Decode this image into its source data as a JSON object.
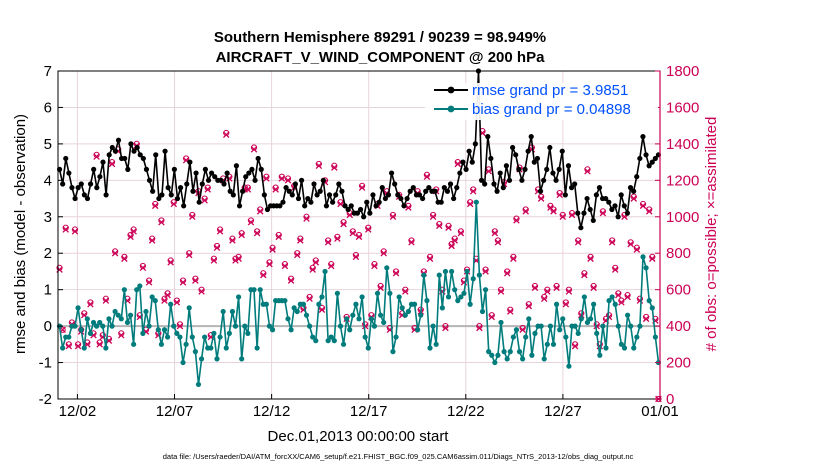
{
  "chart_data": {
    "type": "line",
    "title": "Southern Hemisphere 89291 / 90239 = 98.949%",
    "subtitle": "AIRCRAFT_V_WIND_COMPONENT @ 200 hPa",
    "xlabel": "Dec.01,2013 00:00:00 start",
    "ylabel": "rmse and bias (model - observation)",
    "y2label": "# of obs: o=possible; ×=assimilated",
    "ylim": [
      -2,
      7
    ],
    "y2lim": [
      0,
      1800
    ],
    "xlim": [
      0,
      31
    ],
    "grid": true,
    "legend_position": "top-right",
    "xticks": [
      {
        "value": 1,
        "label": "12/02"
      },
      {
        "value": 6,
        "label": "12/07"
      },
      {
        "value": 11,
        "label": "12/12"
      },
      {
        "value": 16,
        "label": "12/17"
      },
      {
        "value": 21,
        "label": "12/22"
      },
      {
        "value": 26,
        "label": "12/27"
      },
      {
        "value": 31,
        "label": "01/01"
      }
    ],
    "yticks": [
      "-2",
      "-1",
      "0",
      "1",
      "2",
      "3",
      "4",
      "5",
      "6",
      "7"
    ],
    "y2ticks": [
      "0",
      "200",
      "400",
      "600",
      "800",
      "1000",
      "1200",
      "1400",
      "1600",
      "1800"
    ],
    "colors": {
      "rmse": "#000000",
      "bias": "#007c7c",
      "obs": "#cc0055",
      "zero": "#b4b4b4",
      "grid": "#e8d4dc",
      "legend_text": "#0050ff",
      "y2axis": "#cc0055"
    },
    "series": [
      {
        "name": "rmse grand pr = 3.9851",
        "color": "#000000",
        "values": [
          4.3,
          3.9,
          4.6,
          4.2,
          3.8,
          3.5,
          3.8,
          3.9,
          3.6,
          3.5,
          3.9,
          4.3,
          3.8,
          4.1,
          4.5,
          3.6,
          4.7,
          4.9,
          4.8,
          5.1,
          4.6,
          4.6,
          4.3,
          5.0,
          4.8,
          4.9,
          4.7,
          4.6,
          4.3,
          4.0,
          3.7,
          4.7,
          3.5,
          3.6,
          4.8,
          3.8,
          3.6,
          4.3,
          3.5,
          3.8,
          3.3,
          3.9,
          4.5,
          3.7,
          4.2,
          3.4,
          3.9,
          4.3,
          4.0,
          4.2,
          4.1,
          4.0,
          4.0,
          3.9,
          4.2,
          3.7,
          3.6,
          4.4,
          3.3,
          3.7,
          4.1,
          4.2,
          4.3,
          4.0,
          4.6,
          4.3,
          3.6,
          3.2,
          3.3,
          3.3,
          3.3,
          3.3,
          3.4,
          3.8,
          3.7,
          3.6,
          3.9,
          3.5,
          4.0,
          3.3,
          3.5,
          3.4,
          3.9,
          3.6,
          3.7,
          4.0,
          3.3,
          3.6,
          3.4,
          3.6,
          3.9,
          3.7,
          3.3,
          3.2,
          3.3,
          3.1,
          3.1,
          3.2,
          3.0,
          3.4,
          3.1,
          3.6,
          3.3,
          3.4,
          3.8,
          3.5,
          3.6,
          4.2,
          3.9,
          3.6,
          3.5,
          3.3,
          3.5,
          3.7,
          3.8,
          3.6,
          3.6,
          3.5,
          3.7,
          3.8,
          3.7,
          3.7,
          3.4,
          3.4,
          3.8,
          3.7,
          3.9,
          3.5,
          3.8,
          4.2,
          4.5,
          4.3,
          4.8,
          4.5,
          5.0,
          7.0,
          4.0,
          3.9,
          5.2,
          4.6,
          3.9,
          3.7,
          4.2,
          3.8,
          4.4,
          4.0,
          4.9,
          4.7,
          4.3,
          4.0,
          4.3,
          4.8,
          5.2,
          4.5,
          4.6,
          3.7,
          4.0,
          4.3,
          4.9,
          4.2,
          4.0,
          4.3,
          4.8,
          3.6,
          4.4,
          3.8,
          3.9,
          3.1,
          2.7,
          3.1,
          3.5,
          3.2,
          2.9,
          3.6,
          3.8,
          3.5,
          3.5,
          3.4,
          3.2,
          3.3,
          3.0,
          3.6,
          3.3,
          3.1,
          3.8,
          3.7,
          4.1,
          4.6,
          5.2,
          4.7,
          4.4,
          4.5,
          4.6,
          4.7
        ]
      },
      {
        "name": "bias grand pr = 0.04898",
        "color": "#007c7c",
        "values": [
          0.0,
          -0.6,
          -0.3,
          -0.3,
          0.0,
          0.0,
          0.5,
          -0.1,
          -0.6,
          0.2,
          -0.2,
          0.1,
          0.0,
          0.1,
          0.0,
          -0.6,
          0.2,
          0.0,
          0.4,
          0.3,
          0.2,
          1.0,
          0.1,
          0.3,
          -0.5,
          1.0,
          1.1,
          -0.2,
          0.4,
          0.0,
          0.8,
          0.7,
          -0.1,
          -0.5,
          -0.1,
          -0.3,
          0.6,
          0.0,
          -0.2,
          -0.3,
          -1.0,
          -0.5,
          0.5,
          -0.3,
          -0.7,
          -1.6,
          -0.9,
          -0.3,
          -0.6,
          -0.6,
          -0.2,
          -0.9,
          -0.3,
          0.4,
          -0.6,
          -0.2,
          0.4,
          0.0,
          0.8,
          -0.9,
          0.0,
          -0.2,
          1.0,
          1.0,
          -0.6,
          1.0,
          0.6,
          0.6,
          0.0,
          -0.1,
          0.7,
          0.7,
          0.7,
          0.7,
          0.2,
          -0.1,
          0.5,
          0.4,
          0.6,
          0.6,
          0.3,
          0.0,
          -0.3,
          -0.4,
          0.6,
          0.8,
          1.5,
          -0.4,
          -0.3,
          -0.4,
          0.9,
          0.0,
          -0.5,
          0.2,
          -0.1,
          0.3,
          0.6,
          0.2,
          0.8,
          -0.3,
          -0.6,
          0.2,
          0.0,
          0.9,
          0.3,
          0.1,
          1.6,
          0.9,
          -0.7,
          -0.3,
          0.8,
          0.5,
          0.3,
          0.4,
          0.6,
          0.6,
          -0.1,
          0.3,
          1.4,
          0.7,
          -0.6,
          0.0,
          -0.5,
          1.4,
          0.5,
          1.5,
          0.8,
          1.5,
          1.0,
          0.7,
          0.8,
          0.9,
          1.5,
          0.6,
          1.3,
          3.4,
          1.4,
          0.4,
          1.0,
          -0.7,
          -0.8,
          -1.0,
          -0.8,
          0.1,
          -0.7,
          -0.9,
          -0.7,
          -0.3,
          -0.1,
          -0.7,
          -0.9,
          -0.3,
          0.2,
          -0.8,
          -0.2,
          0.0,
          0.0,
          -0.9,
          -0.5,
          0.0,
          -0.5,
          0.6,
          -0.1,
          0.2,
          -0.3,
          -1.1,
          0.0,
          0.0,
          -0.2,
          0.2,
          0.8,
          0.1,
          0.2,
          0.6,
          -0.2,
          -0.8,
          0.0,
          -0.6,
          0.7,
          0.8,
          0.6,
          0.0,
          -0.5,
          -0.6,
          0.3,
          0.0,
          -0.6,
          -0.3,
          0.0,
          1.9,
          1.6,
          0.7,
          0.5,
          -0.3,
          -1.0
        ]
      }
    ],
    "obs_possible": [
      720,
      380,
      940,
      300,
      420,
      930,
      300,
      380,
      470,
      310,
      530,
      360,
      1340,
      310,
      350,
      550,
      330,
      1300,
      810,
      1370,
      360,
      780,
      550,
      900,
      930,
      1400,
      460,
      730,
      380,
      650,
      880,
      1070,
      360,
      980,
      550,
      580,
      760,
      1080,
      540,
      410,
      650,
      1320,
      800,
      1010,
      660,
      1140,
      600,
      1100,
      1160,
      350,
      770,
      840,
      930,
      1210,
      1460,
      1220,
      880,
      770,
      780,
      910,
      1160,
      1160,
      980,
      1380,
      920,
      1040,
      690,
      1220,
      750,
      830,
      1160,
      900,
      1220,
      740,
      1210,
      660,
      1170,
      800,
      880,
      500,
      1000,
      560,
      720,
      760,
      1290,
      500,
      1200,
      870,
      740,
      1280,
      890,
      1080,
      970,
      450,
      1020,
      920,
      790,
      900,
      1170,
      410,
      940,
      460,
      740,
      1070,
      620,
      810,
      1140,
      390,
      1010,
      700,
      1120,
      470,
      600,
      1060,
      870,
      390,
      1140,
      490,
      700,
      1230,
      780,
      1010,
      1150,
      960,
      600,
      400,
      950,
      850,
      880,
      1300,
      920,
      650,
      710,
      1080,
      1150,
      770,
      400,
      1470,
      710,
      1260,
      460,
      920,
      870,
      600,
      1190,
      700,
      490,
      780,
      990,
      1270,
      390,
      1040,
      520,
      1380,
      620,
      1150,
      1110,
      560,
      600,
      1060,
      1040,
      620,
      1130,
      1010,
      530,
      600,
      1020,
      300,
      870,
      470,
      690,
      1260,
      780,
      620,
      410,
      300,
      1030,
      440,
      460,
      870,
      720,
      580,
      540,
      1010,
      570,
      860,
      1110,
      830,
      550,
      1070,
      450,
      1040,
      780,
      440,
      0
    ],
    "obs_assimilated": [
      710,
      380,
      930,
      290,
      410,
      920,
      290,
      370,
      460,
      300,
      520,
      350,
      1330,
      300,
      340,
      540,
      320,
      1290,
      800,
      1360,
      350,
      770,
      540,
      890,
      920,
      1390,
      450,
      720,
      370,
      640,
      870,
      1060,
      350,
      970,
      540,
      570,
      750,
      1070,
      530,
      400,
      640,
      1310,
      790,
      1000,
      650,
      1130,
      590,
      1090,
      1150,
      340,
      760,
      830,
      920,
      1200,
      1450,
      1210,
      870,
      760,
      770,
      900,
      1150,
      1150,
      970,
      1370,
      910,
      1030,
      680,
      1210,
      740,
      820,
      1150,
      890,
      1210,
      730,
      1200,
      650,
      1160,
      790,
      870,
      490,
      990,
      550,
      710,
      750,
      1280,
      490,
      1190,
      860,
      730,
      1270,
      880,
      1070,
      960,
      440,
      1010,
      910,
      780,
      890,
      1160,
      400,
      930,
      450,
      730,
      1060,
      610,
      800,
      1130,
      380,
      1000,
      690,
      1110,
      460,
      590,
      1050,
      860,
      380,
      1130,
      480,
      690,
      1220,
      770,
      1000,
      1140,
      950,
      590,
      390,
      940,
      840,
      870,
      1290,
      910,
      640,
      700,
      1070,
      1140,
      760,
      390,
      1460,
      700,
      1250,
      450,
      910,
      860,
      590,
      1180,
      690,
      480,
      770,
      980,
      1260,
      380,
      1030,
      510,
      1370,
      610,
      1140,
      1100,
      550,
      590,
      1050,
      1030,
      610,
      1120,
      1000,
      520,
      590,
      1010,
      290,
      860,
      460,
      680,
      1250,
      770,
      610,
      400,
      290,
      1020,
      430,
      450,
      860,
      710,
      570,
      530,
      1000,
      560,
      850,
      1100,
      820,
      540,
      1060,
      440,
      1030,
      770,
      430,
      0
    ],
    "footer": "data file: /Users/raeder/DAI/ATM_forcXX/CAM6_setup/f.e21.FHIST_BGC.f09_025.CAM6assim.011/Diags_NTrS_2013-12/obs_diag_output.nc"
  }
}
